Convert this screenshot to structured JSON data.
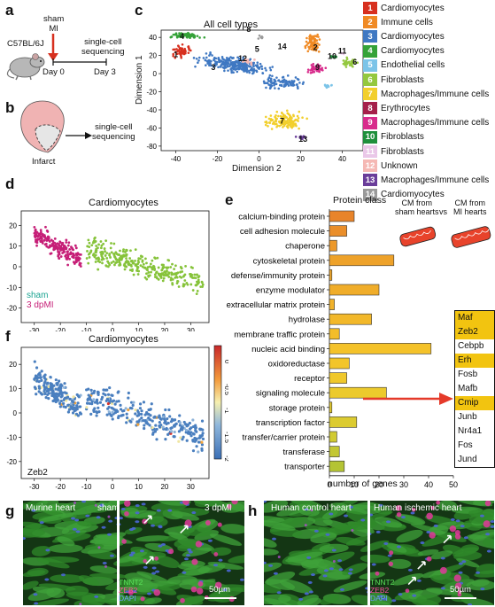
{
  "panels": {
    "a": "a",
    "b": "b",
    "c": "c",
    "d": "d",
    "e": "e",
    "f": "f",
    "g": "g",
    "h": "h"
  },
  "panel_a": {
    "mouse_strain": "C57BL/6J",
    "treatment": "sham\nMI",
    "day0": "Day 0",
    "day3": "Day 3",
    "seq": "single-cell\nsequencing"
  },
  "panel_b": {
    "infarct": "Infarct",
    "seq": "single-cell\nsequencing"
  },
  "panel_c": {
    "title": "All cell types",
    "xlabel": "Dimension 2",
    "ylabel": "Dimension 1",
    "xticks": [
      "-40",
      "-20",
      "0",
      "20",
      "40"
    ],
    "yticks": [
      "40",
      "20",
      "0",
      "-20",
      "-40",
      "-60",
      "-80"
    ],
    "legend": [
      {
        "n": "1",
        "label": "Cardiomyocytes",
        "color": "#d7301f"
      },
      {
        "n": "2",
        "label": "Immune cells",
        "color": "#f08a24"
      },
      {
        "n": "3",
        "label": "Cardiomyocytes",
        "color": "#3f78c2"
      },
      {
        "n": "4",
        "label": "Cardiomyocytes",
        "color": "#35a238"
      },
      {
        "n": "5",
        "label": "Endothelial cells",
        "color": "#7cc4e8"
      },
      {
        "n": "6",
        "label": "Fibroblasts",
        "color": "#94c83f"
      },
      {
        "n": "7",
        "label": "Macrophages/Immune cells",
        "color": "#f2cf2c"
      },
      {
        "n": "8",
        "label": "Erythrocytes",
        "color": "#a5204a"
      },
      {
        "n": "9",
        "label": "Macrophages/Immune cells",
        "color": "#d82c8c"
      },
      {
        "n": "10",
        "label": "Fibroblasts",
        "color": "#1f8f3c"
      },
      {
        "n": "11",
        "label": "Fibroblasts",
        "color": "#eac7e8"
      },
      {
        "n": "12",
        "label": "Unknown",
        "color": "#f5b8b4"
      },
      {
        "n": "13",
        "label": "Macrophages/Immune cells",
        "color": "#6a3d9a"
      },
      {
        "n": "14",
        "label": "Cardiomyocytes",
        "color": "#9a9a9a"
      }
    ]
  },
  "panel_d": {
    "title": "Cardiomyocytes",
    "legend_sham": "sham",
    "legend_mi": "3 dpMI",
    "sham_color": "#86c33a",
    "mi_color": "#c61f77",
    "xticks": [
      "-30",
      "-20",
      "-10",
      "0",
      "10",
      "20",
      "30"
    ],
    "yticks": [
      "20",
      "10",
      "0",
      "-10",
      "-20"
    ]
  },
  "panel_f": {
    "title": "Cardiomyocytes",
    "gene": "Zeb2",
    "xticks": [
      "-30",
      "-20",
      "-10",
      "0",
      "10",
      "20",
      "30"
    ],
    "yticks": [
      "20",
      "10",
      "0",
      "-10",
      "-20"
    ],
    "colorbar_ticks": [
      "0",
      "-0.5",
      "-1",
      "-1.5",
      "-2"
    ]
  },
  "panel_e": {
    "title": "Protein class",
    "xlabel": "number of genes",
    "cm_sham": "CM from\nsham hearts",
    "vs": "vs",
    "cm_mi": "CM from\nMI hearts",
    "genes": [
      {
        "name": "Maf",
        "hl": true
      },
      {
        "name": "Zeb2",
        "hl": true
      },
      {
        "name": "Cebpb",
        "hl": false
      },
      {
        "name": "Erh",
        "hl": true
      },
      {
        "name": "Fosb",
        "hl": false
      },
      {
        "name": "Mafb",
        "hl": false
      },
      {
        "name": "Cmip",
        "hl": true
      },
      {
        "name": "Junb",
        "hl": false
      },
      {
        "name": "Nr4a1",
        "hl": false
      },
      {
        "name": "Fos",
        "hl": false
      },
      {
        "name": "Jund",
        "hl": false
      }
    ]
  },
  "chart_data": {
    "type": "bar",
    "title": "Protein class",
    "xlabel": "number of genes",
    "categories": [
      "calcium-binding protein",
      "cell adhesion molecule",
      "chaperone",
      "cytoskeletal protein",
      "defense/immunity protein",
      "enzyme modulator",
      "extracellular matrix protein",
      "hydrolase",
      "membrane traffic protein",
      "nucleic acid binding",
      "oxidoreductase",
      "receptor",
      "signaling molecule",
      "storage protein",
      "transcription factor",
      "transfer/carrier protein",
      "transferase",
      "transporter"
    ],
    "values": [
      10,
      7,
      3,
      26,
      1,
      20,
      2,
      17,
      4,
      41,
      8,
      7,
      23,
      1,
      11,
      3,
      4,
      6
    ],
    "colors": [
      "#e8842a",
      "#ea8e2a",
      "#ec982a",
      "#eea22a",
      "#f0a82a",
      "#f0ad2a",
      "#f1b22a",
      "#f2b82a",
      "#f3bd2a",
      "#f4c22a",
      "#f2c52a",
      "#f0c82b",
      "#ecca2c",
      "#e6cb2e",
      "#dccb30",
      "#d1ca32",
      "#c3c733",
      "#b4c434"
    ],
    "xticks": [
      "0",
      "10",
      "20",
      "30",
      "40",
      "50"
    ],
    "xlim": [
      0,
      50
    ]
  },
  "panel_g": {
    "label_left": "Murine heart",
    "label_sham": "sham",
    "label_mi": "3 dpMI",
    "stain1": "TNNT2",
    "stain2": "ZEB2",
    "stain3": "DAPI",
    "scale": "50µm"
  },
  "panel_h": {
    "label_left": "Human control heart",
    "label_right": "Human ischemic heart",
    "stain1": "TNNT2",
    "stain2": "ZEB2",
    "stain3": "DAPI",
    "scale": "50µm"
  }
}
